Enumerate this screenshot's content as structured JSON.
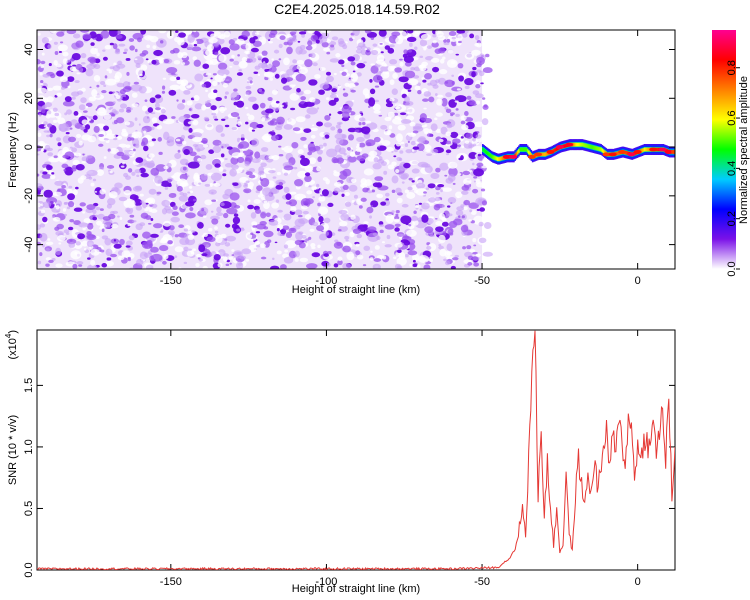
{
  "figure": {
    "title": "C2E4.2025.018.14.59.R02"
  },
  "chart_data": [
    {
      "type": "heatmap",
      "xlabel": "Height of straight line (km)",
      "ylabel": "Frequency (Hz)",
      "xlim": [
        -193,
        12
      ],
      "ylim": [
        -50,
        48
      ],
      "xticks": [
        -150,
        -100,
        -50,
        0
      ],
      "yticks": [
        -40,
        -20,
        0,
        20,
        40
      ],
      "noise_region_x": [
        -193,
        -50
      ],
      "noise_region_y": [
        -50,
        48
      ],
      "noise_color": "#7b12e8",
      "signal_track": {
        "x": [
          -50,
          -47,
          -45,
          -42,
          -40,
          -38,
          -36,
          -34,
          -32,
          -30,
          -28,
          -25,
          -22,
          -20,
          -18,
          -15,
          -12,
          -10,
          -8,
          -5,
          -2,
          0,
          2,
          5,
          8,
          10,
          12
        ],
        "frequency": [
          -1,
          -4,
          -5,
          -4,
          -4,
          -1,
          -1,
          -4,
          -3,
          -3,
          -2,
          0,
          1,
          1,
          1,
          0,
          -1,
          -3,
          -3,
          -2,
          -3,
          -2,
          -1,
          -1,
          -1,
          -2,
          -2
        ],
        "amplitude": [
          0.1,
          0.2,
          0.4,
          0.8,
          0.9,
          0.2,
          0.2,
          0.6,
          0.6,
          0.5,
          0.7,
          0.9,
          0.8,
          0.4,
          0.3,
          0.2,
          0.3,
          0.6,
          0.7,
          0.6,
          0.9,
          0.7,
          0.4,
          0.7,
          0.9,
          0.8,
          0.6
        ]
      },
      "colorbar": {
        "label": "Normalized spectral amplitude",
        "range": [
          0,
          0.95
        ],
        "ticks": [
          0.0,
          0.2,
          0.4,
          0.6,
          0.8
        ],
        "tick_labels": [
          "0.0",
          "0.2",
          "0.4",
          "0.6",
          "0.8"
        ],
        "colors": [
          "#ffffff",
          "#7b12e8",
          "#0000ff",
          "#00ccff",
          "#00ff00",
          "#ffff00",
          "#ff8000",
          "#ff0000",
          "#ff0090"
        ]
      },
      "xtick_labels": [
        "-150",
        "-100",
        "-50",
        "0"
      ],
      "ytick_labels": [
        "-40",
        "-20",
        "0",
        "20",
        "40"
      ]
    },
    {
      "type": "line",
      "xlabel": "Height of straight line (km)",
      "ylabel": "SNR (10 * v/v)",
      "multiplier_label": "(x10",
      "multiplier_exp": "4",
      "multiplier_close": ")",
      "xlim": [
        -193,
        12
      ],
      "ylim": [
        0,
        1.95
      ],
      "xticks": [
        -150,
        -100,
        -50,
        0
      ],
      "xtick_labels": [
        "-150",
        "-100",
        "-50",
        "0"
      ],
      "yticks": [
        0.0,
        0.5,
        1.0,
        1.5
      ],
      "ytick_labels": [
        "0.0",
        "0.5",
        "1.0",
        "1.5"
      ],
      "color": "#e53935",
      "series": [
        {
          "x": [
            -193,
            -150,
            -100,
            -60,
            -45,
            -41,
            -39,
            -37,
            -36,
            -35,
            -34,
            -33,
            -32,
            -31,
            -30,
            -29,
            -28,
            -27,
            -26,
            -25,
            -24,
            -23,
            -22,
            -21,
            -20,
            -19,
            -18,
            -17,
            -16,
            -15,
            -14,
            -13,
            -12,
            -11,
            -10,
            -9,
            -8,
            -7,
            -6,
            -5,
            -4,
            -3,
            -2,
            -1,
            0,
            1,
            2,
            3,
            4,
            5,
            6,
            7,
            8,
            9,
            10,
            11,
            12
          ],
          "y": [
            0.01,
            0.01,
            0.01,
            0.01,
            0.02,
            0.1,
            0.2,
            0.5,
            0.3,
            0.9,
            1.6,
            1.95,
            0.6,
            1.2,
            0.4,
            0.9,
            0.5,
            0.2,
            0.5,
            0.15,
            0.2,
            0.8,
            0.3,
            0.15,
            0.6,
            0.9,
            0.7,
            0.5,
            0.8,
            0.6,
            0.9,
            0.7,
            0.8,
            0.9,
            1.2,
            0.8,
            1.1,
            0.9,
            1.3,
            1.0,
            0.9,
            1.2,
            1.15,
            0.8,
            1.0,
            0.85,
            1.1,
            1.05,
            0.95,
            1.2,
            1.0,
            1.1,
            1.3,
            0.9,
            1.35,
            0.6,
            1.0
          ]
        }
      ]
    }
  ]
}
